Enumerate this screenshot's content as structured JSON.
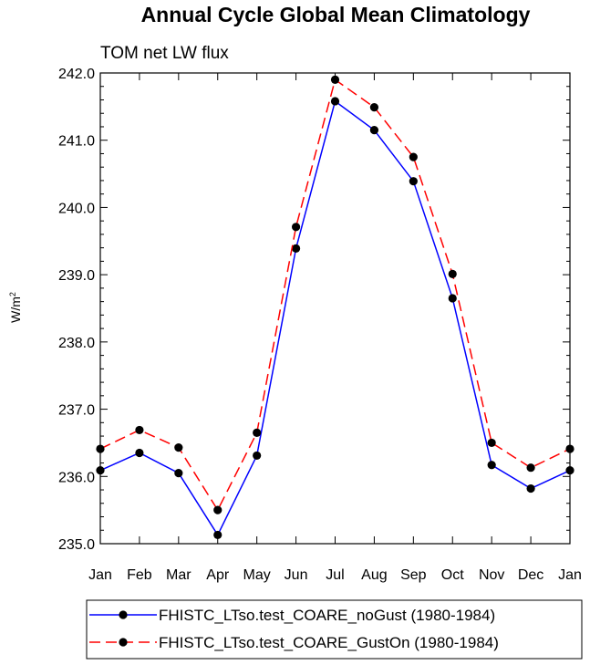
{
  "chart_data": {
    "type": "line",
    "title": "Annual Cycle Global Mean Climatology",
    "subtitle": "TOM net LW flux",
    "ylabel": "W/m",
    "ylabel_superscript": "2",
    "categories": [
      "Jan",
      "Feb",
      "Mar",
      "Apr",
      "May",
      "Jun",
      "Jul",
      "Aug",
      "Sep",
      "Oct",
      "Nov",
      "Dec",
      "Jan"
    ],
    "ylim": [
      235.0,
      242.0
    ],
    "yticks": [
      "235.0",
      "236.0",
      "237.0",
      "238.0",
      "239.0",
      "240.0",
      "241.0",
      "242.0"
    ],
    "legend_position": "bottom",
    "series": [
      {
        "name": "FHISTC_LTso.test_COARE_noGust (1980-1984)",
        "color": "#0000ff",
        "dash": "solid",
        "values": [
          236.09,
          236.35,
          236.05,
          235.13,
          236.31,
          239.39,
          241.58,
          241.15,
          240.39,
          238.65,
          236.17,
          235.82,
          236.09
        ]
      },
      {
        "name": "FHISTC_LTso.test_COARE_GustOn (1980-1984)",
        "color": "#ff0000",
        "dash": "dashed",
        "values": [
          236.41,
          236.69,
          236.43,
          235.5,
          236.65,
          239.71,
          241.9,
          241.49,
          240.75,
          239.01,
          236.5,
          236.13,
          236.41
        ]
      }
    ]
  }
}
